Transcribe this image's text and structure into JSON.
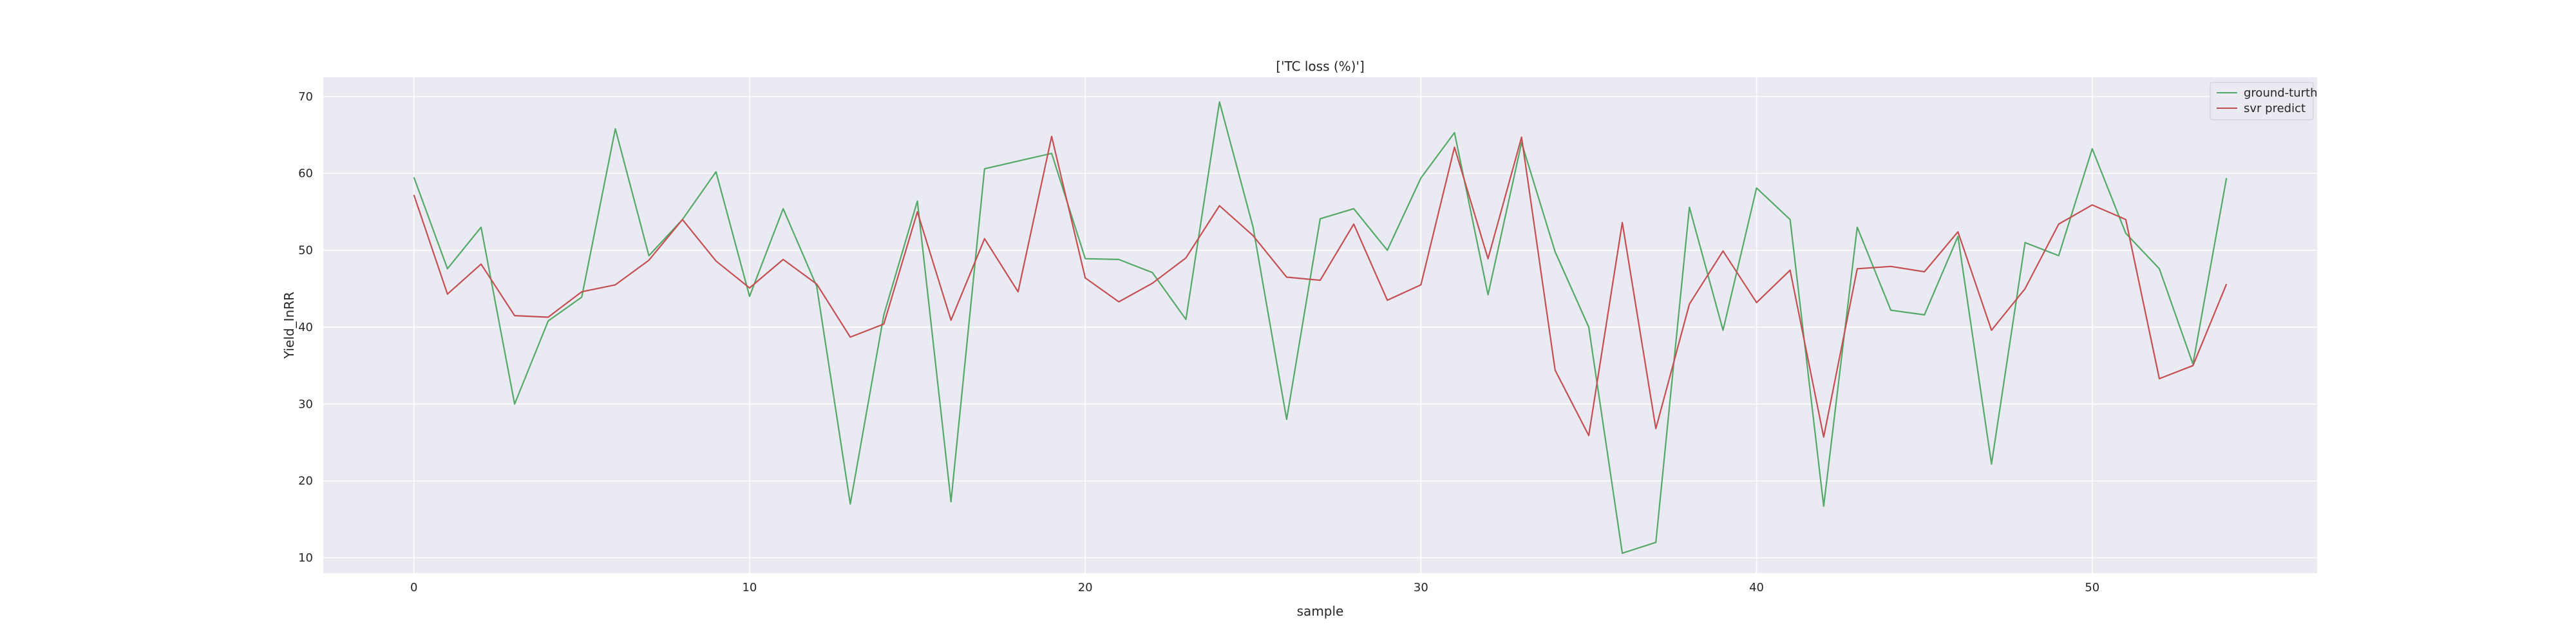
{
  "chart_data": {
    "type": "line",
    "title": "['TC loss (%)']",
    "xlabel": "sample",
    "ylabel": "Yield_InRR",
    "xlim": [
      -2.7,
      56.7
    ],
    "ylim": [
      8,
      72.5
    ],
    "x_ticks": [
      0,
      10,
      20,
      30,
      40,
      50
    ],
    "y_ticks": [
      10,
      20,
      30,
      40,
      50,
      60,
      70
    ],
    "grid": true,
    "legend_position": "top-right",
    "x": [
      0,
      1,
      2,
      3,
      4,
      5,
      6,
      7,
      8,
      9,
      10,
      11,
      12,
      13,
      14,
      15,
      16,
      17,
      18,
      19,
      20,
      21,
      22,
      23,
      24,
      25,
      26,
      27,
      28,
      29,
      30,
      31,
      32,
      33,
      34,
      35,
      36,
      37,
      38,
      39,
      40,
      41,
      42,
      43,
      44,
      45,
      46,
      47,
      48,
      49,
      50,
      51,
      52,
      53,
      54
    ],
    "series": [
      {
        "name": "ground-turth",
        "color": "#55a868",
        "values": [
          59.5,
          47.6,
          53.0,
          30.0,
          40.8,
          43.9,
          65.8,
          49.3,
          54.0,
          60.2,
          44.0,
          55.4,
          45.3,
          17.0,
          41.6,
          56.4,
          17.3,
          60.6,
          61.6,
          62.6,
          48.9,
          48.8,
          47.1,
          41.0,
          69.3,
          53.0,
          28.0,
          54.1,
          55.4,
          50.0,
          59.4,
          65.3,
          44.2,
          64.0,
          49.8,
          40.0,
          10.6,
          12.0,
          55.6,
          39.6,
          58.1,
          54.0,
          16.7,
          53.0,
          42.2,
          41.6,
          51.8,
          22.2,
          51.0,
          49.3,
          63.2,
          52.2,
          47.6,
          35.2,
          59.4
        ]
      },
      {
        "name": "svr predict",
        "color": "#c44e52",
        "values": [
          57.2,
          44.3,
          48.2,
          41.5,
          41.3,
          44.6,
          45.5,
          48.7,
          54.0,
          48.6,
          45.1,
          48.8,
          45.6,
          38.7,
          40.4,
          55.0,
          40.9,
          51.5,
          44.6,
          64.8,
          46.4,
          43.3,
          45.7,
          49.0,
          55.8,
          51.9,
          46.5,
          46.1,
          53.4,
          43.5,
          45.5,
          63.4,
          48.9,
          64.7,
          34.4,
          25.9,
          53.6,
          26.8,
          43.0,
          49.9,
          43.2,
          47.4,
          25.7,
          47.6,
          47.9,
          47.2,
          52.4,
          39.6,
          45.0,
          53.4,
          55.9,
          54.0,
          33.3,
          35.0,
          45.6
        ]
      }
    ]
  }
}
